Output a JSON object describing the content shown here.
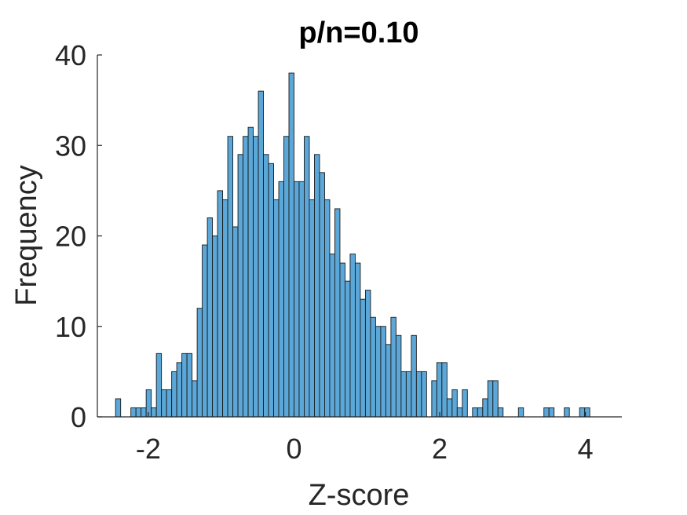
{
  "chart_data": {
    "type": "bar",
    "title": "p/n=0.10",
    "xlabel": "Z-score",
    "ylabel": "Frequency",
    "xlim": [
      -2.7,
      4.5
    ],
    "ylim": [
      0,
      40
    ],
    "xticks": [
      -2,
      0,
      2,
      4
    ],
    "yticks": [
      0,
      10,
      20,
      30,
      40
    ],
    "grid": false,
    "bar_color": "#5ba7d8",
    "bar_edge_color": "#1a1a1a",
    "bin_start": -2.45,
    "bin_width": 0.07,
    "values": [
      2,
      0,
      0,
      1,
      1,
      1,
      3,
      1,
      7,
      3,
      3,
      5,
      6,
      7,
      7,
      4,
      12,
      19,
      22,
      20,
      25,
      24,
      31,
      21,
      29,
      31,
      32,
      31,
      36,
      29,
      28,
      24,
      26,
      31,
      38,
      26,
      26,
      31,
      24,
      29,
      27,
      24,
      18,
      23,
      17,
      15,
      18,
      17,
      13,
      14,
      11,
      10,
      10,
      8,
      11,
      9,
      5,
      5,
      9,
      5,
      5,
      0,
      4,
      6,
      6,
      2,
      3,
      1,
      3,
      0,
      1,
      1,
      2,
      4,
      4,
      1,
      0,
      0,
      0,
      1,
      0,
      0,
      0,
      0,
      1,
      1,
      0,
      0,
      1,
      0,
      0,
      1,
      1
    ]
  },
  "title": "p/n=0.10",
  "xlabel": "Z-score",
  "ylabel": "Frequency",
  "xtick_labels": [
    "-2",
    "0",
    "2",
    "4"
  ],
  "ytick_labels": [
    "0",
    "10",
    "20",
    "30",
    "40"
  ]
}
